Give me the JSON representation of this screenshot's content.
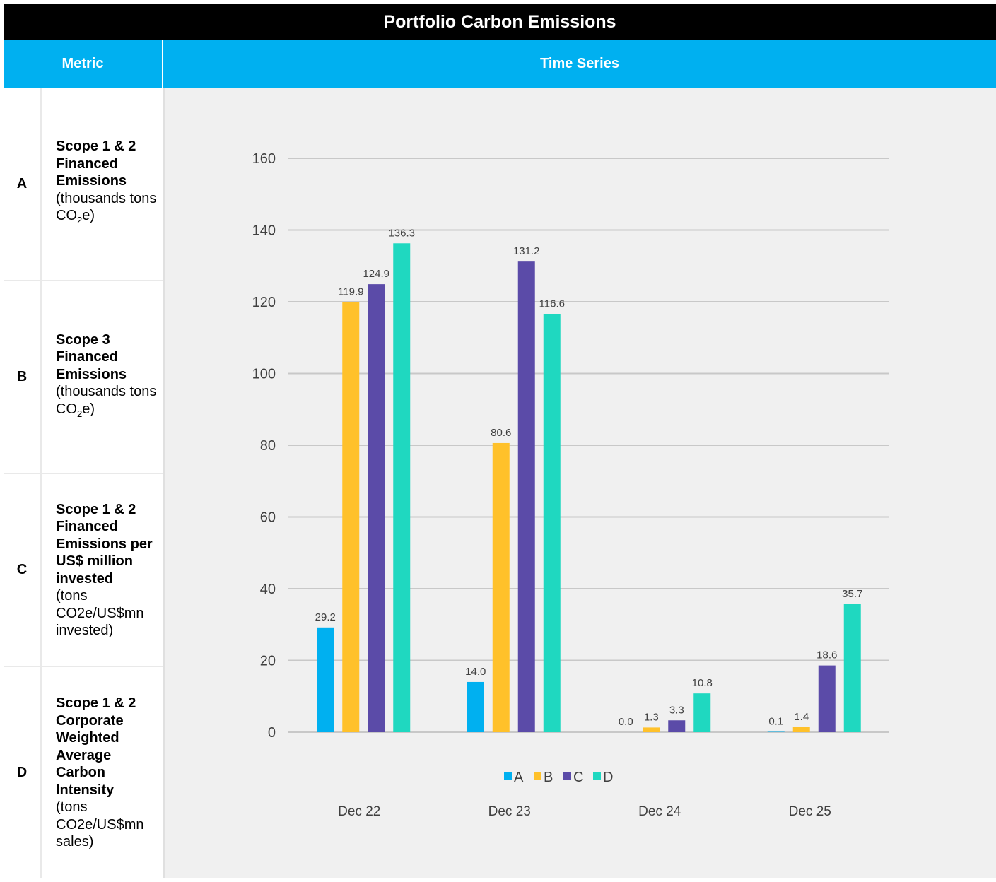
{
  "title": "Portfolio Carbon Emissions",
  "header": {
    "metric": "Metric",
    "series": "Time Series"
  },
  "metrics": [
    {
      "letter": "A",
      "name": "Scope 1 & 2 Financed Emissions",
      "unit_pre": "(thousands tons CO",
      "unit_sub": "2",
      "unit_post": "e)"
    },
    {
      "letter": "B",
      "name": "Scope 3 Financed Emissions",
      "unit_pre": "(thousands tons CO",
      "unit_sub": "2",
      "unit_post": "e)"
    },
    {
      "letter": "C",
      "name": "Scope 1 & 2 Financed Emissions per US$ million invested",
      "unit_pre": "(tons CO2e/US$mn invested)",
      "unit_sub": "",
      "unit_post": ""
    },
    {
      "letter": "D",
      "name": "Scope 1 & 2 Corporate Weighted Average Carbon Intensity",
      "unit_pre": "(tons CO2e/US$mn sales)",
      "unit_sub": "",
      "unit_post": ""
    }
  ],
  "colors": {
    "A": "#00b0f0",
    "B": "#ffc12a",
    "C": "#5b4ba8",
    "D": "#1fd8c0",
    "grid": "#c8c8c8",
    "text": "#404040"
  },
  "chart_data": {
    "type": "bar",
    "categories": [
      "Dec 22",
      "Dec 23",
      "Dec 24",
      "Dec 25"
    ],
    "series": [
      {
        "name": "A",
        "values": [
          29.2,
          14.0,
          0.0,
          0.1
        ],
        "labels": [
          "29.2",
          "14.0",
          "0.0",
          "0.1"
        ]
      },
      {
        "name": "B",
        "values": [
          119.9,
          80.6,
          1.3,
          1.4
        ],
        "labels": [
          "119.9",
          "80.6",
          "1.3",
          "1.4"
        ]
      },
      {
        "name": "C",
        "values": [
          124.9,
          131.2,
          3.3,
          18.6
        ],
        "labels": [
          "124.9",
          "131.2",
          "3.3",
          "18.6"
        ]
      },
      {
        "name": "D",
        "values": [
          136.3,
          116.6,
          10.8,
          35.7
        ],
        "labels": [
          "136.3",
          "116.6",
          "10.8",
          "35.7"
        ]
      }
    ],
    "yticks": [
      0,
      20,
      40,
      60,
      80,
      100,
      120,
      140,
      160
    ],
    "ylim": [
      0,
      160
    ],
    "grid": true,
    "legend": "bottom-center"
  }
}
